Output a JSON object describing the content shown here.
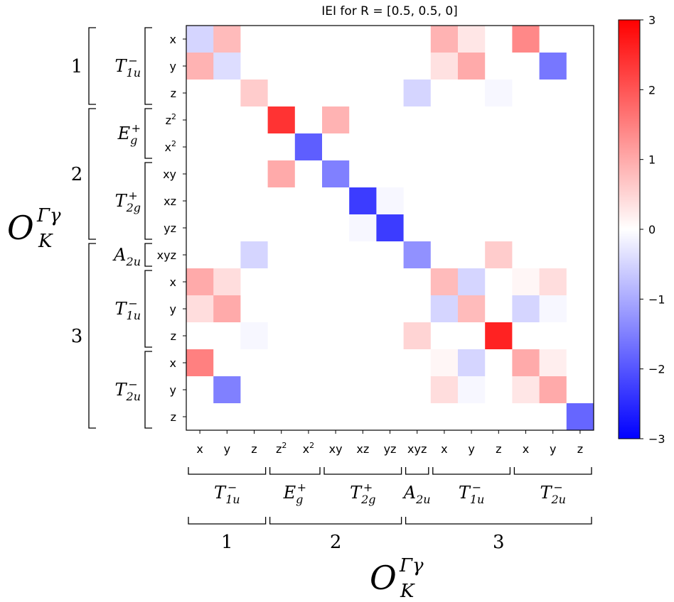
{
  "chart_data": {
    "type": "heatmap",
    "title": "IEI for R = [0.5, 0.5, 0]",
    "axis_symbol": "O",
    "axis_superscript": "Γγ",
    "axis_subscript": "K",
    "tick_labels": [
      "x",
      "y",
      "z",
      "z2",
      "x2",
      "xy",
      "xz",
      "yz",
      "xyz",
      "x",
      "y",
      "z",
      "x",
      "y",
      "z"
    ],
    "irreps": [
      {
        "base": "T",
        "sup": "−",
        "sub": "1u",
        "start": 0,
        "end": 2
      },
      {
        "base": "E",
        "sup": "+",
        "sub": "g",
        "start": 3,
        "end": 4
      },
      {
        "base": "T",
        "sup": "+",
        "sub": "2g",
        "start": 5,
        "end": 7
      },
      {
        "base": "A",
        "sup": "",
        "sub": "2u",
        "start": 8,
        "end": 8
      },
      {
        "base": "T",
        "sup": "−",
        "sub": "1u",
        "start": 9,
        "end": 11
      },
      {
        "base": "T",
        "sup": "−",
        "sub": "2u",
        "start": 12,
        "end": 14
      }
    ],
    "shells": [
      {
        "label": "1",
        "start": 0,
        "end": 2
      },
      {
        "label": "2",
        "start": 3,
        "end": 7
      },
      {
        "label": "3",
        "start": 8,
        "end": 14
      }
    ],
    "colorbar": {
      "min": -3,
      "max": 3,
      "ticks": [
        "3",
        "2",
        "1",
        "0",
        "−1",
        "−2",
        "−3"
      ],
      "tick_values": [
        3,
        2,
        1,
        0,
        -1,
        -2,
        -3
      ],
      "colormap": "bwr"
    },
    "matrix": [
      [
        -0.5,
        0.8,
        0,
        0,
        0,
        0,
        0,
        0,
        0,
        0.9,
        0.3,
        0,
        1.4,
        0,
        0
      ],
      [
        0.9,
        -0.4,
        0,
        0,
        0,
        0,
        0,
        0,
        0,
        0.35,
        1.0,
        0,
        0,
        -1.6,
        0
      ],
      [
        0,
        0,
        0.6,
        0,
        0,
        0,
        0,
        0,
        -0.5,
        0,
        0,
        -0.1,
        0,
        0,
        0
      ],
      [
        0,
        0,
        0,
        2.4,
        0,
        0.9,
        0,
        0,
        0,
        0,
        0,
        0,
        0,
        0,
        0
      ],
      [
        0,
        0,
        0,
        0,
        -1.9,
        0,
        0,
        0,
        0,
        0,
        0,
        0,
        0,
        0,
        0
      ],
      [
        0,
        0,
        0,
        1.0,
        0,
        -1.5,
        0,
        0,
        0,
        0,
        0,
        0,
        0,
        0,
        0
      ],
      [
        0,
        0,
        0,
        0,
        0,
        0,
        -2.3,
        -0.1,
        0,
        0,
        0,
        0,
        0,
        0,
        0
      ],
      [
        0,
        0,
        0,
        0,
        0,
        0,
        -0.1,
        -2.3,
        0,
        0,
        0,
        0,
        0,
        0,
        0
      ],
      [
        0,
        0,
        -0.5,
        0,
        0,
        0,
        0,
        0,
        -1.3,
        0,
        0,
        0.6,
        0,
        0,
        0
      ],
      [
        1.0,
        0.4,
        0,
        0,
        0,
        0,
        0,
        0,
        0,
        0.8,
        -0.5,
        0,
        0.1,
        0.4,
        0
      ],
      [
        0.4,
        1.0,
        0,
        0,
        0,
        0,
        0,
        0,
        0,
        -0.5,
        0.8,
        0,
        -0.5,
        -0.1,
        0
      ],
      [
        0,
        0,
        -0.1,
        0,
        0,
        0,
        0,
        0,
        0.5,
        0,
        0,
        2.6,
        0,
        0,
        0
      ],
      [
        1.5,
        0,
        0,
        0,
        0,
        0,
        0,
        0,
        0,
        0.1,
        -0.5,
        0,
        1.0,
        0.2,
        0
      ],
      [
        0,
        -1.5,
        0,
        0,
        0,
        0,
        0,
        0,
        0,
        0.4,
        -0.1,
        0,
        0.3,
        1.0,
        0
      ],
      [
        0,
        0,
        0,
        0,
        0,
        0,
        0,
        0,
        0,
        0,
        0,
        0,
        0,
        0,
        -1.8
      ]
    ]
  }
}
